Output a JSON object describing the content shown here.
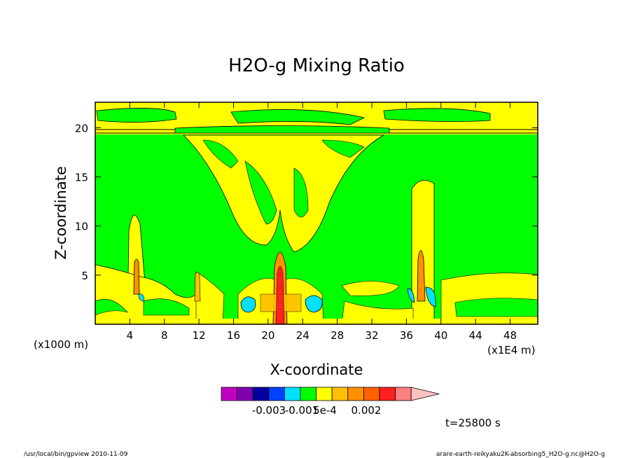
{
  "chart_data": {
    "type": "heatmap",
    "title": "H2O-g Mixing Ratio",
    "xlabel": "X-coordinate",
    "ylabel": "Z-coordinate",
    "x_unit_left": "(x1000 m)",
    "x_unit_right": "(x1E4 m)",
    "xlim": [
      0,
      51.2
    ],
    "ylim": [
      0,
      22.6
    ],
    "x_ticks": [
      4,
      8,
      12,
      16,
      20,
      24,
      28,
      32,
      36,
      40,
      44,
      48
    ],
    "y_ticks": [
      5,
      10,
      15,
      20
    ],
    "x_tick_labels": [
      "4",
      "8",
      "12",
      "16",
      "20",
      "24",
      "28",
      "32",
      "36",
      "40",
      "44",
      "48"
    ],
    "y_tick_labels": [
      "5",
      "10",
      "15",
      "20"
    ],
    "background_level_color": "#00ff00",
    "colorbar": {
      "colors": [
        "#c000c0",
        "#8000b0",
        "#0000a0",
        "#0040ff",
        "#00e0ff",
        "#00ff00",
        "#ffff00",
        "#ffc000",
        "#ff9000",
        "#ff6000",
        "#ff2020",
        "#ff8080",
        "#ffc0c0"
      ],
      "labels": [
        "-0.003",
        "-0.001",
        "5e-4",
        "0.002"
      ]
    },
    "time_label": "t=25800 s"
  },
  "footer": {
    "left": "/usr/local/bin/gpview  2010-11-09",
    "right": "arare-earth-reikyaku2K-absorbing5_H2O-g.nc@H2O-g"
  }
}
